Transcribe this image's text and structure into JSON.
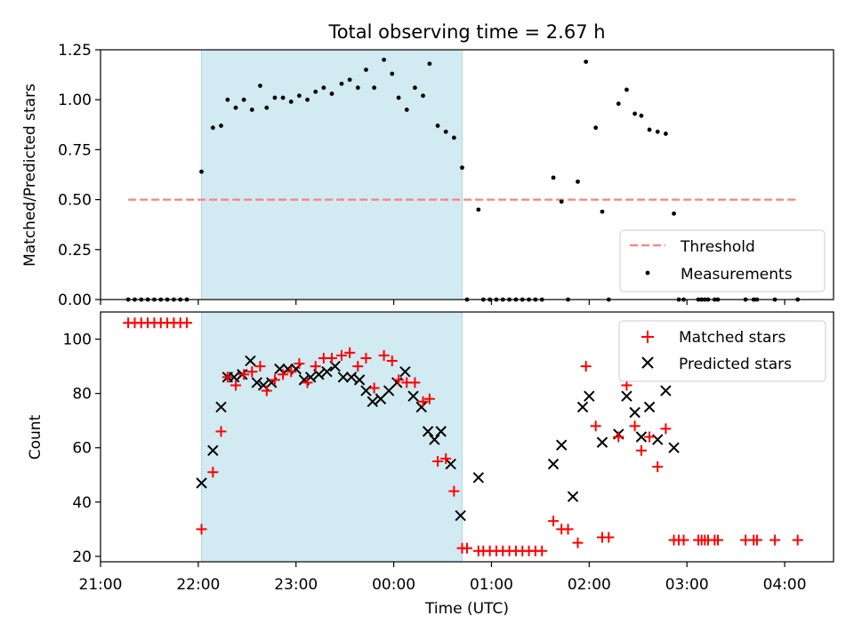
{
  "chart_data": [
    {
      "type": "scatter",
      "title": "Total observing time = 2.67 h",
      "ylabel": "Matched/Predicted stars",
      "xlabel": "",
      "xlim": [
        "21:00",
        "04:30"
      ],
      "ylim": [
        0,
        1.25
      ],
      "yticks": [
        "0.00",
        "0.25",
        "0.50",
        "0.75",
        "1.00",
        "1.25"
      ],
      "xticks": [
        "21:00",
        "22:00",
        "23:00",
        "00:00",
        "01:00",
        "02:00",
        "03:00",
        "04:00"
      ],
      "observing_window": {
        "start": "22:02",
        "end": "00:42",
        "color": "#add8e6"
      },
      "legend": {
        "position": "lower-right",
        "entries": [
          "Threshold",
          "Measurements"
        ]
      },
      "series": [
        {
          "name": "Threshold",
          "kind": "dashed-line",
          "color": "#ff7f7f",
          "x": [
            "21:17",
            "04:08"
          ],
          "y": [
            0.5,
            0.5
          ]
        },
        {
          "name": "Measurements",
          "kind": "dot",
          "color": "#000000",
          "x": [
            "21:17",
            "21:21",
            "21:25",
            "21:29",
            "21:33",
            "21:37",
            "21:41",
            "21:45",
            "21:49",
            "21:53",
            "22:02",
            "22:09",
            "22:14",
            "22:18",
            "22:23",
            "22:28",
            "22:33",
            "22:38",
            "22:42",
            "22:47",
            "22:52",
            "22:57",
            "23:02",
            "23:07",
            "23:12",
            "23:17",
            "23:22",
            "23:28",
            "23:33",
            "23:38",
            "23:43",
            "23:48",
            "23:54",
            "23:59",
            "00:03",
            "00:08",
            "00:13",
            "00:18",
            "00:22",
            "00:27",
            "00:32",
            "00:37",
            "00:42",
            "00:45",
            "00:52",
            "00:55",
            "00:59",
            "01:03",
            "01:07",
            "01:11",
            "01:15",
            "01:19",
            "01:23",
            "01:27",
            "01:31",
            "01:38",
            "01:43",
            "01:47",
            "01:53",
            "01:58",
            "02:04",
            "02:08",
            "02:12",
            "02:18",
            "02:23",
            "02:28",
            "02:32",
            "02:37",
            "02:42",
            "02:47",
            "02:52",
            "02:55",
            "02:58",
            "03:07",
            "03:09",
            "03:11",
            "03:13",
            "03:17",
            "03:19",
            "03:36",
            "03:41",
            "03:43",
            "03:54",
            "04:08"
          ],
          "y": [
            0,
            0,
            0,
            0,
            0,
            0,
            0,
            0,
            0,
            0,
            0.64,
            0.86,
            0.87,
            1.0,
            0.96,
            1.0,
            0.95,
            1.07,
            0.96,
            1.01,
            1.01,
            0.99,
            1.02,
            1.0,
            1.04,
            1.06,
            1.03,
            1.08,
            1.1,
            1.06,
            1.15,
            1.06,
            1.2,
            1.13,
            1.01,
            0.95,
            1.06,
            1.02,
            1.18,
            0.87,
            0.84,
            0.81,
            0.66,
            0,
            0.45,
            0,
            0,
            0,
            0,
            0,
            0,
            0,
            0,
            0,
            0,
            0.61,
            0.49,
            0,
            0.59,
            1.19,
            0.86,
            0.44,
            0,
            0.98,
            1.05,
            0.93,
            0.92,
            0.85,
            0.84,
            0.83,
            0.43,
            0,
            0,
            0,
            0,
            0,
            0,
            0,
            0,
            0,
            0,
            0,
            0,
            0
          ]
        }
      ]
    },
    {
      "type": "scatter",
      "title": "",
      "ylabel": "Count",
      "xlabel": "Time (UTC)",
      "xlim": [
        "21:00",
        "04:30"
      ],
      "ylim": [
        18,
        110
      ],
      "yticks": [
        "20",
        "40",
        "60",
        "80",
        "100"
      ],
      "xticks": [
        "21:00",
        "22:00",
        "23:00",
        "00:00",
        "01:00",
        "02:00",
        "03:00",
        "04:00"
      ],
      "observing_window": {
        "start": "22:02",
        "end": "00:42",
        "color": "#add8e6"
      },
      "legend": {
        "position": "top-right",
        "entries": [
          "Matched stars",
          "Predicted stars"
        ]
      },
      "series": [
        {
          "name": "Matched stars",
          "kind": "plus",
          "color": "#ff0000",
          "x": [
            "21:17",
            "21:21",
            "21:25",
            "21:29",
            "21:33",
            "21:37",
            "21:41",
            "21:45",
            "21:49",
            "21:53",
            "22:02",
            "22:09",
            "22:14",
            "22:18",
            "22:23",
            "22:28",
            "22:33",
            "22:38",
            "22:42",
            "22:47",
            "22:52",
            "22:57",
            "23:02",
            "23:07",
            "23:12",
            "23:17",
            "23:22",
            "23:28",
            "23:33",
            "23:38",
            "23:43",
            "23:48",
            "23:54",
            "23:59",
            "00:03",
            "00:08",
            "00:13",
            "00:18",
            "00:22",
            "00:27",
            "00:32",
            "00:37",
            "00:42",
            "00:45",
            "00:52",
            "00:55",
            "00:59",
            "01:03",
            "01:07",
            "01:11",
            "01:15",
            "01:19",
            "01:23",
            "01:27",
            "01:31",
            "01:38",
            "01:43",
            "01:47",
            "01:53",
            "01:58",
            "02:04",
            "02:08",
            "02:12",
            "02:18",
            "02:23",
            "02:28",
            "02:32",
            "02:37",
            "02:42",
            "02:47",
            "02:52",
            "02:55",
            "02:58",
            "03:07",
            "03:09",
            "03:11",
            "03:13",
            "03:17",
            "03:19",
            "03:36",
            "03:41",
            "03:43",
            "03:54",
            "04:08"
          ],
          "y": [
            106,
            106,
            106,
            106,
            106,
            106,
            106,
            106,
            106,
            106,
            30,
            51,
            66,
            86,
            83,
            87,
            88,
            90,
            81,
            85,
            87,
            88,
            91,
            84,
            90,
            93,
            93,
            94,
            95,
            90,
            93,
            82,
            94,
            92,
            85,
            84,
            84,
            77,
            78,
            55,
            56,
            44,
            23,
            23,
            22,
            22,
            22,
            22,
            22,
            22,
            22,
            22,
            22,
            22,
            22,
            33,
            30,
            30,
            25,
            90,
            68,
            27,
            27,
            64,
            83,
            68,
            59,
            64,
            53,
            67,
            26,
            26,
            26,
            26,
            26,
            26,
            26,
            26,
            26,
            26,
            26,
            26,
            26,
            26
          ]
        },
        {
          "name": "Predicted stars",
          "kind": "x",
          "color": "#000000",
          "x": [
            "22:02",
            "22:09",
            "22:14",
            "22:18",
            "22:22",
            "22:27",
            "22:32",
            "22:36",
            "22:40",
            "22:45",
            "22:50",
            "22:55",
            "23:00",
            "23:05",
            "23:09",
            "23:14",
            "23:19",
            "23:24",
            "23:29",
            "23:34",
            "23:39",
            "23:43",
            "23:47",
            "23:52",
            "23:57",
            "00:02",
            "00:07",
            "00:12",
            "00:17",
            "00:21",
            "00:25",
            "00:29",
            "00:35",
            "00:41",
            "00:52",
            "01:38",
            "01:43",
            "01:50",
            "01:56",
            "02:00",
            "02:08",
            "02:18",
            "02:23",
            "02:28",
            "02:32",
            "02:37",
            "02:42",
            "02:47",
            "02:52"
          ],
          "y": [
            47,
            59,
            75,
            86,
            86,
            87,
            92,
            84,
            83,
            84,
            89,
            89,
            89,
            85,
            86,
            87,
            88,
            90,
            86,
            86,
            85,
            81,
            77,
            78,
            81,
            84,
            88,
            79,
            75,
            66,
            63,
            66,
            54,
            35,
            49,
            54,
            61,
            42,
            75,
            79,
            62,
            65,
            79,
            73,
            64,
            75,
            63,
            81,
            60
          ]
        }
      ]
    }
  ]
}
